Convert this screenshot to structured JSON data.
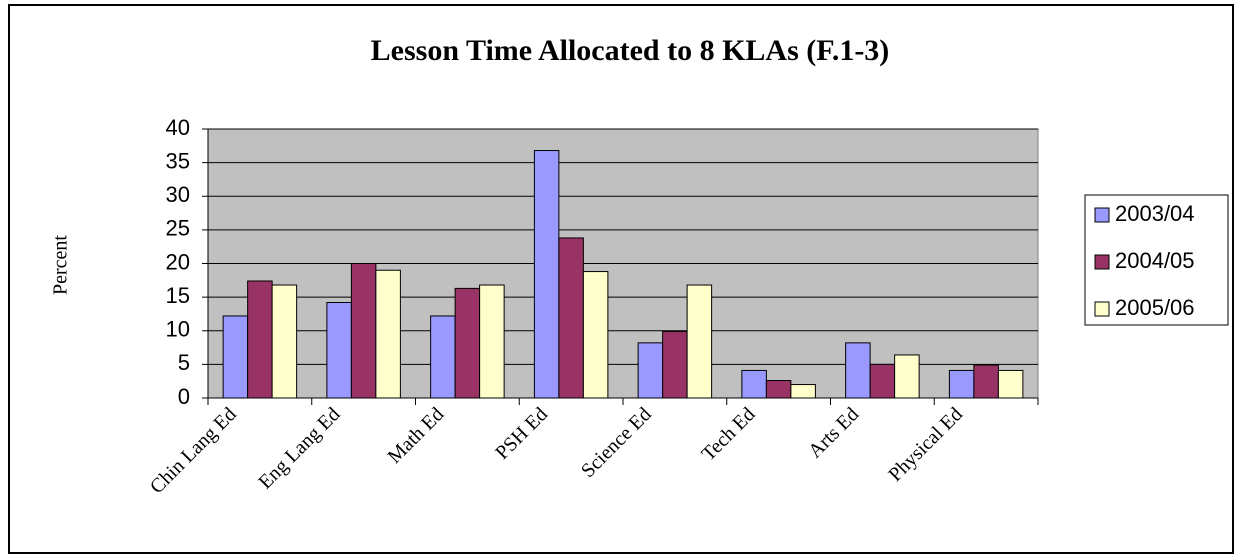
{
  "chart_data": {
    "type": "bar",
    "title": "Lesson Time Allocated to 8 KLAs (F.1-3)",
    "y_label": "Percent",
    "categories": [
      "Chin Lang Ed",
      "Eng Lang Ed",
      "Math Ed",
      "PSH Ed",
      "Science Ed",
      "Tech Ed",
      "Arts Ed",
      "Physical Ed"
    ],
    "series": [
      {
        "name": "2003/04",
        "color": "#9999ff",
        "values": [
          12.2,
          14.2,
          12.2,
          36.8,
          8.2,
          4.1,
          8.2,
          4.1
        ]
      },
      {
        "name": "2004/05",
        "color": "#993366",
        "values": [
          17.4,
          20,
          16.3,
          23.8,
          9.9,
          2.6,
          5,
          4.9
        ]
      },
      {
        "name": "2005/06",
        "color": "#ffffcc",
        "values": [
          16.8,
          19,
          16.8,
          18.8,
          16.8,
          2,
          6.4,
          4.1
        ]
      }
    ],
    "ylim": [
      0,
      40
    ],
    "yticks": [
      0,
      5,
      10,
      15,
      20,
      25,
      30,
      35,
      40
    ],
    "grid": true,
    "legend": "right"
  }
}
